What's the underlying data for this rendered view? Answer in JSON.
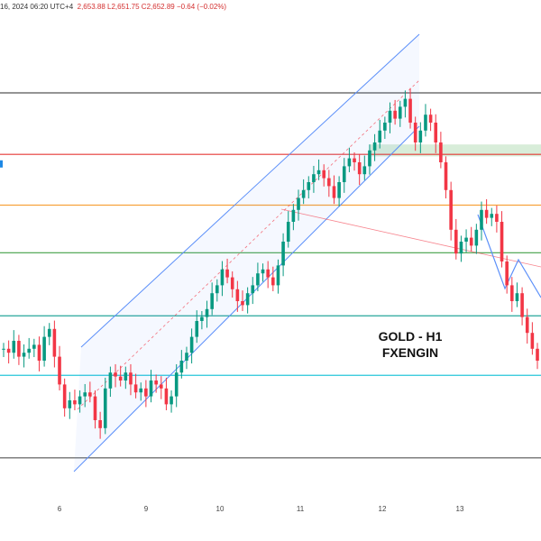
{
  "header": {
    "date_time": "16, 2024 06:20 UTC+4",
    "ohlc_text": "2,653.88  L2,651.75  C2,652.89  −0.64 (−0.02%)"
  },
  "watermark": {
    "line1": "GOLD - H1",
    "line2": "FXENGIN"
  },
  "colors": {
    "bull": "#089981",
    "bear": "#f23645",
    "channel": "#5b8ff9",
    "resistance_red": "#e53935",
    "orange": "#f7a23b",
    "green": "#43a047",
    "teal": "#26a69a",
    "cyan": "#26c6da",
    "gray": "#555555",
    "zone": "#c8e6c9"
  },
  "chart_data": {
    "type": "candlestick",
    "x_ticks": [
      "6",
      "9",
      "10",
      "11",
      "12",
      "13"
    ],
    "y_scale_units": "relative (0 = bottom of plot, 100 = top of plot)",
    "ylim": [
      0,
      100
    ],
    "horizontal_levels": [
      {
        "name": "top",
        "y": 92.5,
        "color": "gray"
      },
      {
        "name": "red",
        "y": 77.0,
        "color": "resistance_red"
      },
      {
        "name": "orange",
        "y": 64.2,
        "color": "orange"
      },
      {
        "name": "green",
        "y": 52.2,
        "color": "green"
      },
      {
        "name": "teal",
        "y": 36.3,
        "color": "teal"
      },
      {
        "name": "cyan",
        "y": 21.3,
        "color": "cyan"
      },
      {
        "name": "bottom",
        "y": 0.5,
        "color": "gray"
      }
    ],
    "candles_close": [
      28,
      27,
      30,
      26,
      27,
      28,
      29,
      25,
      31,
      33,
      26,
      19,
      13,
      15,
      14,
      16,
      17,
      16,
      10,
      8,
      18,
      22,
      21,
      20,
      22,
      19,
      17,
      18,
      16,
      20,
      19,
      18,
      14,
      16,
      22,
      25,
      27,
      31,
      35,
      36,
      38,
      42,
      44,
      48,
      46,
      43,
      40,
      39,
      42,
      44,
      47,
      48,
      46,
      44,
      49,
      55,
      60,
      63,
      66,
      68,
      70,
      72,
      73,
      71,
      69,
      66,
      70,
      74,
      76,
      75,
      72,
      74,
      78,
      80,
      83,
      85,
      88,
      86,
      89,
      91,
      85,
      80,
      83,
      87,
      85,
      80,
      75,
      68,
      58,
      52,
      55,
      56,
      54,
      58,
      63,
      61,
      62,
      60,
      50,
      44,
      40,
      42,
      36,
      32,
      28,
      25
    ]
  }
}
